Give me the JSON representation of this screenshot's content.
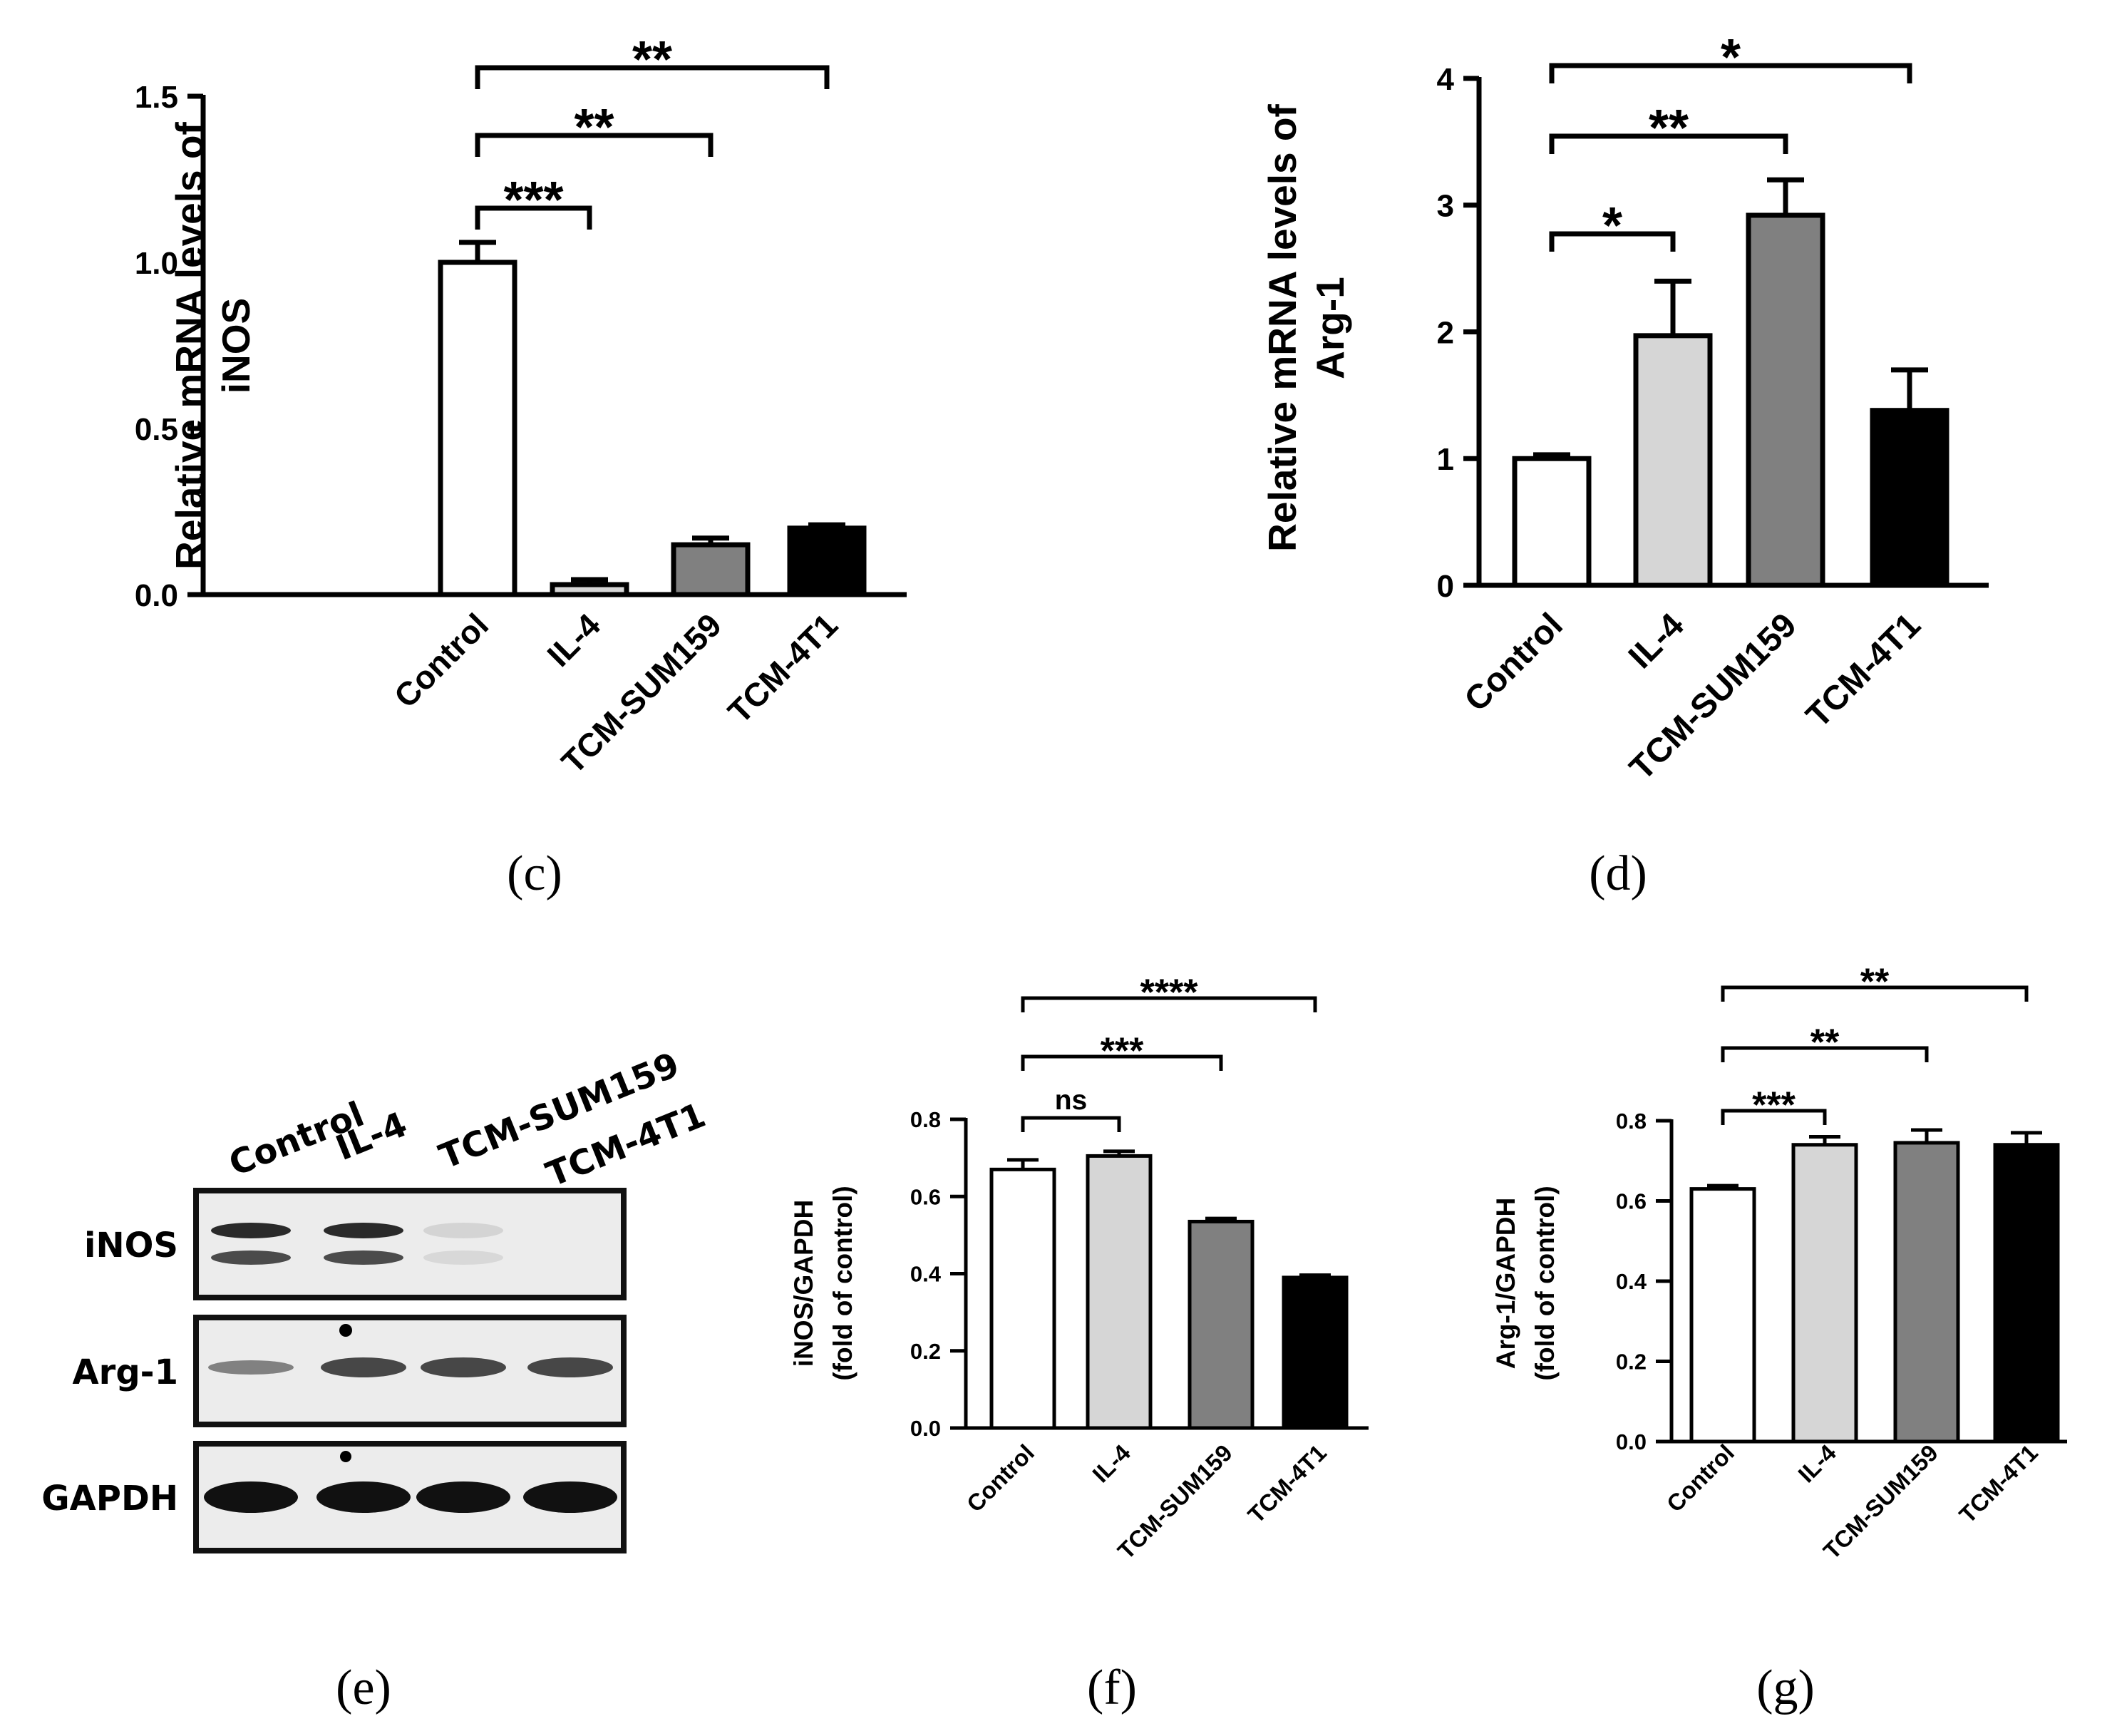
{
  "colors": {
    "Control": "#ffffff",
    "IL-4": "#d6d6d6",
    "TCM-SUM159": "#808080",
    "TCM-4T1": "#000000",
    "stroke": "#000000"
  },
  "chart_data": [
    {
      "id": "c",
      "type": "bar",
      "panel_label": "(c)",
      "ylabel_lines": [
        "Relative  mRNA levels of",
        "iNOS"
      ],
      "categories": [
        "Control",
        "IL-4",
        "TCM-SUM159",
        "TCM-4T1"
      ],
      "values": [
        1.0,
        0.03,
        0.15,
        0.2
      ],
      "errors": [
        0.06,
        0.015,
        0.02,
        0.01
      ],
      "ylim": [
        0,
        1.5
      ],
      "yticks": [
        0.0,
        0.5,
        1.0,
        1.5
      ],
      "ytick_labels": [
        "0.0",
        "0.5",
        "1.0",
        "1.5"
      ],
      "significance": [
        {
          "from": 0,
          "to": 1,
          "label": "***"
        },
        {
          "from": 0,
          "to": 2,
          "label": "**"
        },
        {
          "from": 0,
          "to": 3,
          "label": "**"
        }
      ]
    },
    {
      "id": "d",
      "type": "bar",
      "panel_label": "(d)",
      "ylabel_lines": [
        "Relative  mRNA levels of",
        "Arg-1"
      ],
      "categories": [
        "Control",
        "IL-4",
        "TCM-SUM159",
        "TCM-4T1"
      ],
      "values": [
        1.0,
        1.97,
        2.92,
        1.38
      ],
      "errors": [
        0.03,
        0.43,
        0.28,
        0.32
      ],
      "ylim": [
        0,
        4
      ],
      "yticks": [
        0,
        1,
        2,
        3,
        4
      ],
      "ytick_labels": [
        "0",
        "1",
        "2",
        "3",
        "4"
      ],
      "significance": [
        {
          "from": 0,
          "to": 1,
          "label": "*"
        },
        {
          "from": 0,
          "to": 2,
          "label": "**"
        },
        {
          "from": 0,
          "to": 3,
          "label": "*"
        }
      ]
    },
    {
      "id": "f",
      "type": "bar",
      "panel_label": "(f)",
      "ylabel_lines": [
        "iNOS/GAPDH",
        "(fold of control)"
      ],
      "categories": [
        "Control",
        "IL-4",
        "TCM-SUM159",
        "TCM-4T1"
      ],
      "values": [
        0.67,
        0.705,
        0.535,
        0.39
      ],
      "errors": [
        0.025,
        0.012,
        0.008,
        0.006
      ],
      "ylim": [
        0,
        0.8
      ],
      "yticks": [
        0.0,
        0.2,
        0.4,
        0.6,
        0.8
      ],
      "ytick_labels": [
        "0.0",
        "0.2",
        "0.4",
        "0.6",
        "0.8"
      ],
      "significance": [
        {
          "from": 0,
          "to": 1,
          "label": "ns"
        },
        {
          "from": 0,
          "to": 2,
          "label": "***"
        },
        {
          "from": 0,
          "to": 3,
          "label": "****"
        }
      ]
    },
    {
      "id": "g",
      "type": "bar",
      "panel_label": "(g)",
      "ylabel_lines": [
        "Arg-1/GAPDH",
        "(fold of control)"
      ],
      "categories": [
        "Control",
        "IL-4",
        "TCM-SUM159",
        "TCM-4T1"
      ],
      "values": [
        0.63,
        0.74,
        0.745,
        0.74
      ],
      "errors": [
        0.008,
        0.02,
        0.032,
        0.03
      ],
      "ylim": [
        0,
        0.8
      ],
      "yticks": [
        0.0,
        0.2,
        0.4,
        0.6,
        0.8
      ],
      "ytick_labels": [
        "0.0",
        "0.2",
        "0.4",
        "0.6",
        "0.8"
      ],
      "significance": [
        {
          "from": 0,
          "to": 1,
          "label": "***"
        },
        {
          "from": 0,
          "to": 2,
          "label": "**"
        },
        {
          "from": 0,
          "to": 3,
          "label": "**"
        }
      ]
    }
  ],
  "western_blot": {
    "panel_label": "(e)",
    "lanes": [
      "Control",
      "IL-4",
      "TCM-SUM159",
      "TCM-4T1"
    ],
    "rows": [
      "iNOS",
      "Arg-1",
      "GAPDH"
    ]
  }
}
